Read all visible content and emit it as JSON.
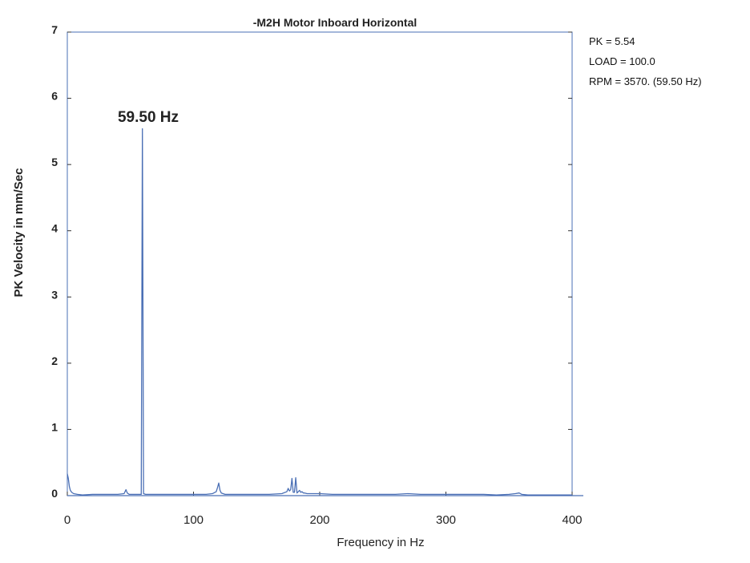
{
  "chart_data": {
    "type": "line",
    "title": "-M2H   Motor Inboard Horizontal",
    "xlabel": "Frequency in Hz",
    "ylabel": "PK Velocity in mm/Sec",
    "xlim": [
      0,
      400
    ],
    "ylim": [
      0,
      7
    ],
    "xticks": [
      0,
      100,
      200,
      300,
      400
    ],
    "yticks": [
      0,
      1,
      2,
      3,
      4,
      5,
      6,
      7
    ],
    "grid": false,
    "line_color": "#4a6fb5",
    "annotation": {
      "text": "59.50 Hz",
      "x": 59.5,
      "y": 5.54
    },
    "series": [
      {
        "x": [
          0,
          0.8,
          1.6,
          2.4,
          3.5,
          5,
          8,
          12,
          20,
          30,
          40,
          45,
          46.5,
          47.5,
          49,
          55,
          58.6,
          59.5,
          60.4,
          62,
          70,
          80,
          90,
          100,
          110,
          115,
          118,
          119,
          120,
          121,
          122,
          125,
          130,
          140,
          150,
          160,
          170,
          174,
          175,
          176,
          177,
          178,
          179,
          180,
          181,
          182,
          183,
          184,
          185,
          186,
          187,
          188,
          190,
          200,
          210,
          220,
          230,
          240,
          250,
          260,
          270,
          280,
          290,
          300,
          310,
          320,
          330,
          340,
          350,
          355,
          358,
          360,
          365,
          370,
          380,
          390,
          400
        ],
        "y": [
          0.33,
          0.26,
          0.14,
          0.08,
          0.05,
          0.03,
          0.02,
          0.01,
          0.02,
          0.02,
          0.02,
          0.03,
          0.09,
          0.04,
          0.02,
          0.02,
          0.02,
          5.54,
          0.03,
          0.02,
          0.02,
          0.02,
          0.02,
          0.02,
          0.02,
          0.03,
          0.06,
          0.12,
          0.19,
          0.08,
          0.04,
          0.02,
          0.02,
          0.02,
          0.02,
          0.02,
          0.03,
          0.06,
          0.11,
          0.07,
          0.09,
          0.26,
          0.05,
          0.05,
          0.27,
          0.04,
          0.06,
          0.08,
          0.05,
          0.06,
          0.04,
          0.04,
          0.03,
          0.03,
          0.02,
          0.02,
          0.02,
          0.02,
          0.02,
          0.02,
          0.03,
          0.02,
          0.02,
          0.02,
          0.02,
          0.02,
          0.02,
          0.01,
          0.02,
          0.03,
          0.04,
          0.02,
          0.01,
          0.01,
          0.01,
          0.01,
          0.01
        ]
      }
    ]
  },
  "info": {
    "pk": "PK  =  5.54",
    "load": "LOAD = 100.0",
    "rpm": "RPM = 3570. (59.50 Hz)"
  }
}
